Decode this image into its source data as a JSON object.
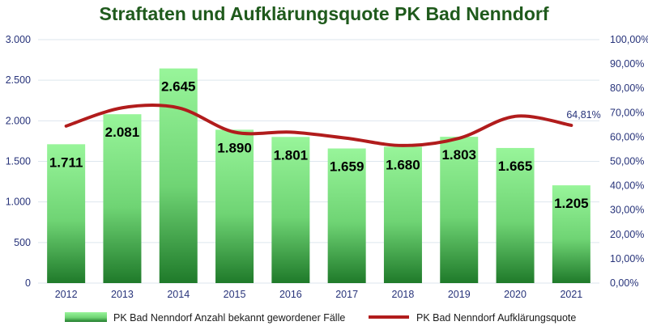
{
  "chart_data": {
    "type": "bar",
    "title": "Straftaten und Aufklärungsquote PK Bad Nenndorf",
    "categories": [
      "2012",
      "2013",
      "2014",
      "2015",
      "2016",
      "2017",
      "2018",
      "2019",
      "2020",
      "2021"
    ],
    "series": [
      {
        "name": "PK Bad Nenndorf Anzahl bekannt gewordener Fälle",
        "type": "bar",
        "axis": "left",
        "values": [
          1711,
          2081,
          2645,
          1890,
          1801,
          1659,
          1680,
          1803,
          1665,
          1205
        ],
        "labels": [
          "1.711",
          "2.081",
          "2.645",
          "1.890",
          "1.801",
          "1.659",
          "1.680",
          "1.803",
          "1.665",
          "1.205"
        ]
      },
      {
        "name": "PK Bad Nenndorf Aufklärungsquote",
        "type": "line",
        "axis": "right",
        "values": [
          64.5,
          72.0,
          72.0,
          62.0,
          62.0,
          59.5,
          56.5,
          59.5,
          68.5,
          64.81
        ]
      }
    ],
    "y_left": {
      "ylim": [
        0,
        3000
      ],
      "ticks": [
        "0",
        "500",
        "1.000",
        "1.500",
        "2.000",
        "2.500",
        "3.000"
      ],
      "tick_values": [
        0,
        500,
        1000,
        1500,
        2000,
        2500,
        3000
      ]
    },
    "y_right": {
      "ylim": [
        0,
        100
      ],
      "ticks": [
        "0,00%",
        "10,00%",
        "20,00%",
        "30,00%",
        "40,00%",
        "50,00%",
        "60,00%",
        "70,00%",
        "80,00%",
        "90,00%",
        "100,00%"
      ],
      "tick_values": [
        0,
        10,
        20,
        30,
        40,
        50,
        60,
        70,
        80,
        90,
        100
      ]
    },
    "annotation": "64,81%",
    "grid": true,
    "legend_position": "bottom",
    "colors": {
      "bar_top": "#98f59a",
      "bar_bottom": "#1f7a2a",
      "line": "#b11c1c",
      "axis_text": "#27337a",
      "grid": "#dde6ee",
      "title": "#1f5a1c"
    }
  }
}
